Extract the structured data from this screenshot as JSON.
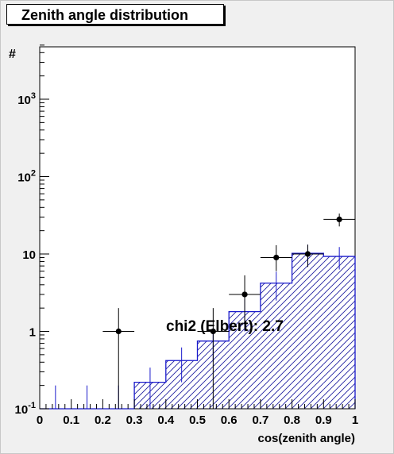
{
  "chart_data": {
    "type": "histogram",
    "title": "Zenith angle distribution",
    "xlabel": "cos(zenith angle)",
    "ylabel": "#",
    "xlim": [
      0,
      1
    ],
    "ylim": [
      0.1,
      5000
    ],
    "yscale": "log",
    "x_ticks": [
      "0",
      "0.1",
      "0.2",
      "0.3",
      "0.4",
      "0.5",
      "0.6",
      "0.7",
      "0.8",
      "0.9",
      "1"
    ],
    "y_ticks": [
      {
        "value": 0.1,
        "base": "10",
        "exp": "-1"
      },
      {
        "value": 1,
        "base": "1",
        "exp": ""
      },
      {
        "value": 10,
        "base": "10",
        "exp": ""
      },
      {
        "value": 100,
        "base": "10",
        "exp": "2"
      },
      {
        "value": 1000,
        "base": "10",
        "exp": "3"
      }
    ],
    "histogram": {
      "color": "#1a1acc",
      "fill": "hatched",
      "bin_edges": [
        0,
        0.1,
        0.2,
        0.3,
        0.4,
        0.5,
        0.6,
        0.7,
        0.8,
        0.9,
        1.0
      ],
      "values": [
        0.1,
        0.1,
        0.1,
        0.22,
        0.42,
        0.75,
        1.8,
        4.2,
        10.2,
        9.3
      ],
      "errors_low": [
        0.1,
        0.1,
        0.1,
        0.12,
        0.2,
        0.35,
        0.8,
        1.7,
        3.0,
        3.0
      ],
      "errors_high": [
        0.1,
        0.1,
        0.1,
        0.12,
        0.2,
        0.35,
        0.8,
        1.7,
        3.0,
        3.0
      ]
    },
    "data_points": {
      "color": "#000000",
      "x": [
        0.25,
        0.55,
        0.65,
        0.75,
        0.85,
        0.95
      ],
      "y": [
        1,
        1,
        3,
        9,
        10,
        28
      ],
      "errors_low": [
        1,
        1,
        1.7,
        3,
        3.2,
        5.3
      ],
      "errors_high": [
        1,
        1,
        2.3,
        4,
        3.2,
        5.3
      ],
      "xerr": 0.05
    },
    "annotation": "chi2 (Elbert): 2.7"
  }
}
